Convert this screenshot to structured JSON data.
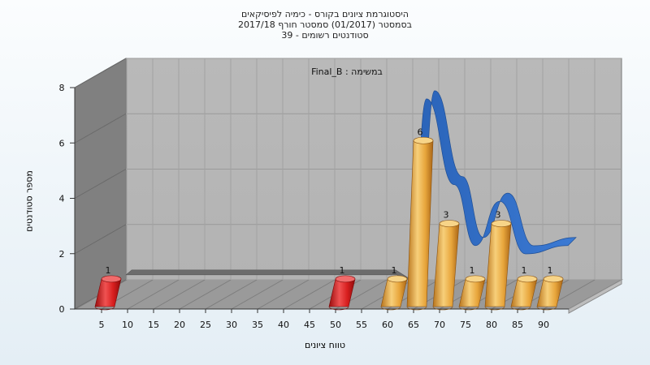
{
  "title": {
    "line1": "היסטוגרמת ציונים בקורס - כימיה לפיסיקאים",
    "line2": "בסמסטר  (01/2017)  סמסטר חורף 2017/18",
    "line3": "סטודנטים רשומים - 39"
  },
  "annotation": "במשימה : Final_B",
  "chart_data": {
    "type": "bar",
    "title": "היסטוגרמת ציונים בקורס - כימיה לפיסיקאים",
    "xlabel": "טווח ציונים",
    "ylabel": "מספר סטודנטים",
    "ylim": [
      0,
      8
    ],
    "y_ticks": [
      "0",
      "2",
      "4",
      "6",
      "8"
    ],
    "categories": [
      "5",
      "10",
      "15",
      "20",
      "25",
      "30",
      "35",
      "40",
      "45",
      "50",
      "55",
      "60",
      "65",
      "70",
      "75",
      "80",
      "85",
      "90"
    ],
    "series": [
      {
        "values": [
          1,
          0,
          0,
          0,
          0,
          0,
          0,
          0,
          0,
          1,
          0,
          1,
          6,
          3,
          1,
          3,
          1,
          1
        ],
        "data_labels": [
          "1",
          "",
          "",
          "",
          "",
          "",
          "",
          "",
          "",
          "1",
          "",
          "1",
          "6",
          "3",
          "1",
          "3",
          "1",
          "1"
        ]
      }
    ],
    "bar_colors": {
      "fail": "#d81e1e",
      "pass": "#e8a63c"
    },
    "band_colors": {
      "gray": "#6c6c6c",
      "blue": "#2f6fc8"
    },
    "grid": true
  }
}
